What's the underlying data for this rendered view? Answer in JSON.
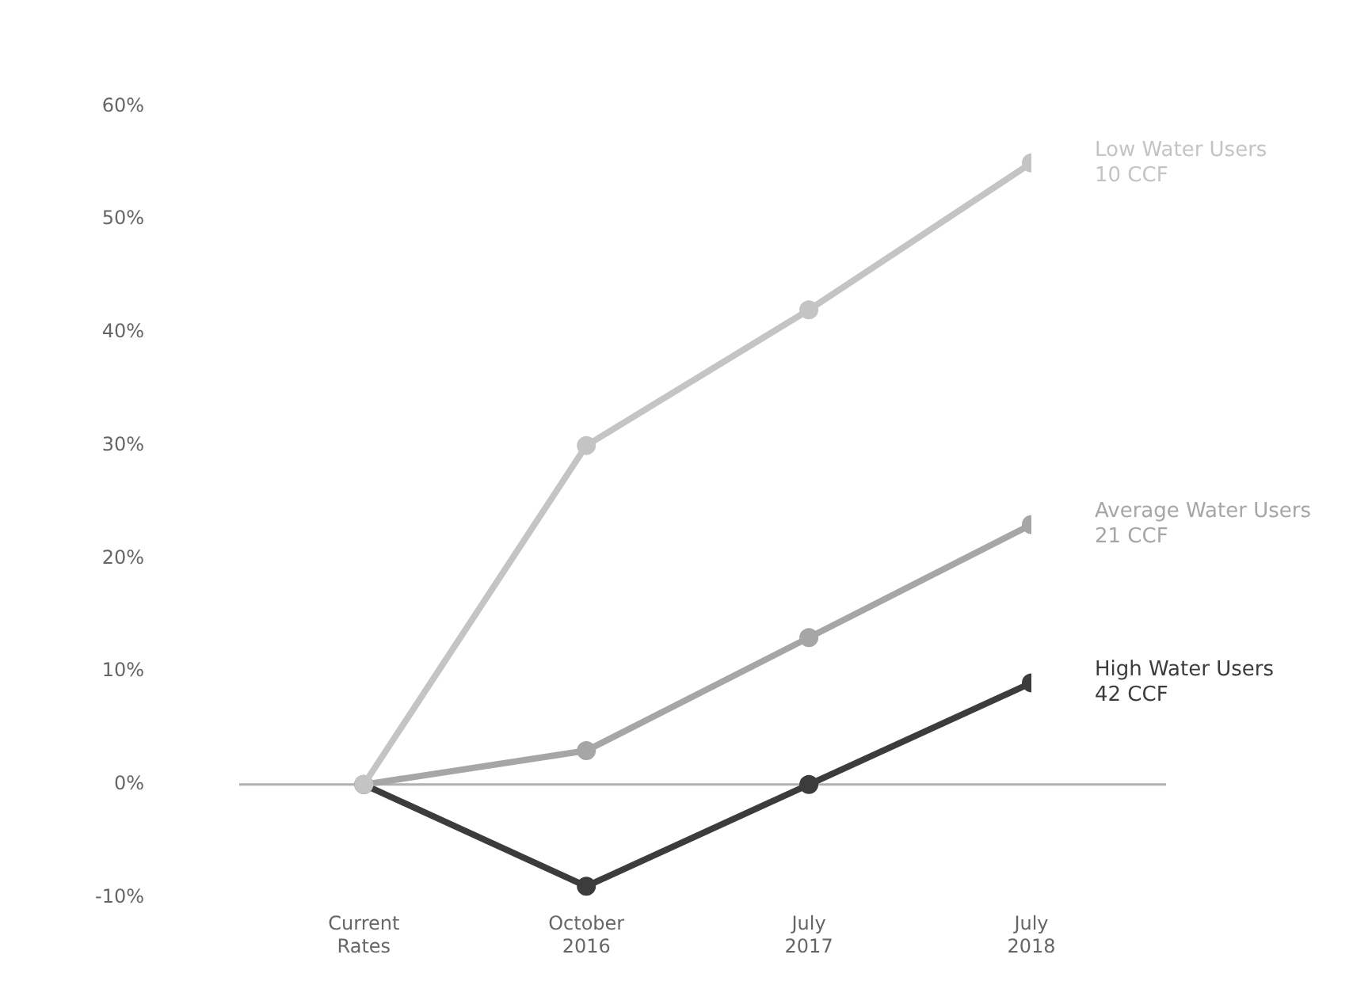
{
  "chart_data": {
    "type": "line",
    "categories": [
      "Current\nRates",
      "October\n2016",
      "July\n2017",
      "July\n2018"
    ],
    "series": [
      {
        "name": "Low Water Users\n10 CCF",
        "color": "#c4c4c4",
        "values": [
          0,
          30,
          42,
          55
        ]
      },
      {
        "name": "Average Water Users\n21 CCF",
        "color": "#a6a6a6",
        "values": [
          0,
          3,
          13,
          23
        ]
      },
      {
        "name": "High Water Users\n42 CCF",
        "color": "#3c3c3c",
        "values": [
          0,
          -9,
          0,
          9
        ]
      }
    ],
    "ylim": [
      -10,
      60
    ],
    "yticks": [
      {
        "value": -10,
        "label": "-10%"
      },
      {
        "value": 0,
        "label": "0%"
      },
      {
        "value": 10,
        "label": "10%"
      },
      {
        "value": 20,
        "label": "20%"
      },
      {
        "value": 30,
        "label": "30%"
      },
      {
        "value": 40,
        "label": "40%"
      },
      {
        "value": 50,
        "label": "50%"
      },
      {
        "value": 60,
        "label": "60%"
      }
    ],
    "grid": false,
    "legend": false,
    "marker": "circle",
    "line_style": "solid",
    "ref_lines": [
      {
        "axis": "y",
        "value": 0,
        "color": "#b0b0b0"
      }
    ]
  }
}
